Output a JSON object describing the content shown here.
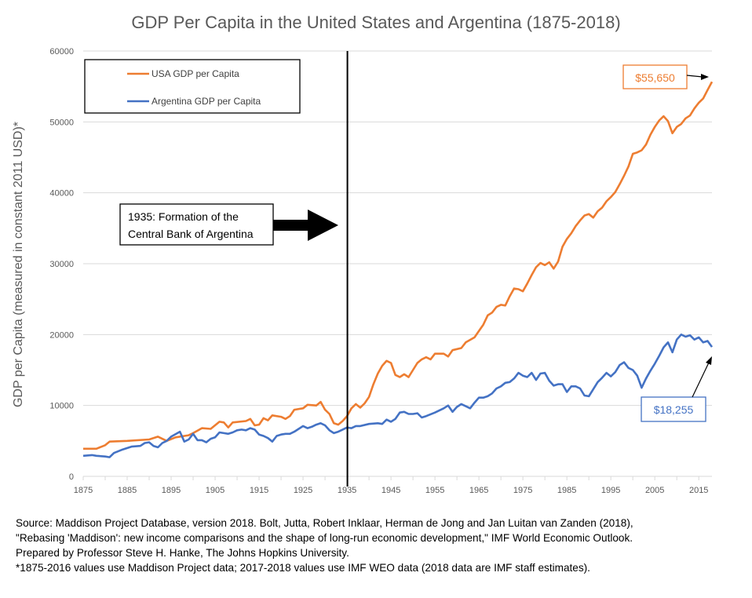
{
  "chart_data": {
    "type": "line",
    "title": "GDP Per Capita in the United States and Argentina (1875-2018)",
    "xlabel": "",
    "ylabel": "GDP per Capita (measured in constant 2011 USD)*",
    "xlim": [
      1875,
      2018
    ],
    "ylim": [
      0,
      60000
    ],
    "x_ticks": [
      "1875",
      "1885",
      "1895",
      "1905",
      "1915",
      "1925",
      "1935",
      "1945",
      "1955",
      "1965",
      "1975",
      "1985",
      "1995",
      "2005",
      "2015"
    ],
    "y_ticks": [
      "0",
      "10000",
      "20000",
      "30000",
      "40000",
      "50000",
      "60000"
    ],
    "grid": "horizontal",
    "legend_placement": "top-left",
    "colors": {
      "usa": "#ED7D31",
      "argentina": "#4472C4"
    },
    "series": [
      {
        "name": "USA GDP per Capita",
        "points": [
          [
            1875,
            3900
          ],
          [
            1878,
            3900
          ],
          [
            1880,
            4400
          ],
          [
            1881,
            4900
          ],
          [
            1885,
            5000
          ],
          [
            1890,
            5200
          ],
          [
            1892,
            5600
          ],
          [
            1894,
            5000
          ],
          [
            1896,
            5500
          ],
          [
            1899,
            5800
          ],
          [
            1900,
            6100
          ],
          [
            1902,
            6800
          ],
          [
            1904,
            6700
          ],
          [
            1906,
            7700
          ],
          [
            1907,
            7600
          ],
          [
            1908,
            6900
          ],
          [
            1909,
            7600
          ],
          [
            1912,
            7800
          ],
          [
            1913,
            8100
          ],
          [
            1914,
            7200
          ],
          [
            1915,
            7300
          ],
          [
            1916,
            8200
          ],
          [
            1917,
            7900
          ],
          [
            1918,
            8600
          ],
          [
            1920,
            8400
          ],
          [
            1921,
            8100
          ],
          [
            1922,
            8500
          ],
          [
            1923,
            9400
          ],
          [
            1925,
            9600
          ],
          [
            1926,
            10100
          ],
          [
            1928,
            10000
          ],
          [
            1929,
            10500
          ],
          [
            1930,
            9400
          ],
          [
            1931,
            8800
          ],
          [
            1932,
            7500
          ],
          [
            1933,
            7300
          ],
          [
            1934,
            7800
          ],
          [
            1935,
            8500
          ],
          [
            1936,
            9600
          ],
          [
            1937,
            10200
          ],
          [
            1938,
            9700
          ],
          [
            1939,
            10300
          ],
          [
            1940,
            11200
          ],
          [
            1941,
            13000
          ],
          [
            1942,
            14500
          ],
          [
            1943,
            15600
          ],
          [
            1944,
            16300
          ],
          [
            1945,
            16000
          ],
          [
            1946,
            14300
          ],
          [
            1947,
            14000
          ],
          [
            1948,
            14400
          ],
          [
            1949,
            14000
          ],
          [
            1950,
            15000
          ],
          [
            1951,
            16000
          ],
          [
            1952,
            16500
          ],
          [
            1953,
            16800
          ],
          [
            1954,
            16500
          ],
          [
            1955,
            17300
          ],
          [
            1957,
            17300
          ],
          [
            1958,
            16900
          ],
          [
            1959,
            17800
          ],
          [
            1961,
            18100
          ],
          [
            1962,
            18900
          ],
          [
            1964,
            19600
          ],
          [
            1965,
            20500
          ],
          [
            1966,
            21400
          ],
          [
            1967,
            22700
          ],
          [
            1968,
            23100
          ],
          [
            1969,
            23900
          ],
          [
            1970,
            24200
          ],
          [
            1971,
            24100
          ],
          [
            1972,
            25400
          ],
          [
            1973,
            26500
          ],
          [
            1974,
            26400
          ],
          [
            1975,
            26100
          ],
          [
            1976,
            27200
          ],
          [
            1977,
            28400
          ],
          [
            1978,
            29500
          ],
          [
            1979,
            30100
          ],
          [
            1980,
            29800
          ],
          [
            1981,
            30200
          ],
          [
            1982,
            29300
          ],
          [
            1983,
            30300
          ],
          [
            1984,
            32400
          ],
          [
            1985,
            33500
          ],
          [
            1986,
            34300
          ],
          [
            1987,
            35300
          ],
          [
            1988,
            36100
          ],
          [
            1989,
            36800
          ],
          [
            1990,
            37000
          ],
          [
            1991,
            36500
          ],
          [
            1992,
            37400
          ],
          [
            1993,
            37900
          ],
          [
            1994,
            38800
          ],
          [
            1995,
            39400
          ],
          [
            1996,
            40100
          ],
          [
            1997,
            41200
          ],
          [
            1998,
            42400
          ],
          [
            1999,
            43700
          ],
          [
            2000,
            45500
          ],
          [
            2001,
            45700
          ],
          [
            2002,
            46000
          ],
          [
            2003,
            46800
          ],
          [
            2004,
            48200
          ],
          [
            2005,
            49300
          ],
          [
            2006,
            50200
          ],
          [
            2007,
            50800
          ],
          [
            2008,
            50100
          ],
          [
            2009,
            48400
          ],
          [
            2010,
            49300
          ],
          [
            2011,
            49700
          ],
          [
            2012,
            50500
          ],
          [
            2013,
            50900
          ],
          [
            2014,
            51900
          ],
          [
            2015,
            52700
          ],
          [
            2016,
            53300
          ],
          [
            2017,
            54500
          ],
          [
            2018,
            55650
          ]
        ]
      },
      {
        "name": "Argentina GDP per Capita",
        "points": [
          [
            1875,
            2900
          ],
          [
            1877,
            3000
          ],
          [
            1878,
            2900
          ],
          [
            1880,
            2800
          ],
          [
            1881,
            2700
          ],
          [
            1882,
            3300
          ],
          [
            1884,
            3800
          ],
          [
            1886,
            4200
          ],
          [
            1888,
            4300
          ],
          [
            1889,
            4700
          ],
          [
            1890,
            4800
          ],
          [
            1891,
            4300
          ],
          [
            1892,
            4100
          ],
          [
            1893,
            4700
          ],
          [
            1894,
            5000
          ],
          [
            1895,
            5600
          ],
          [
            1897,
            6300
          ],
          [
            1898,
            4900
          ],
          [
            1899,
            5200
          ],
          [
            1900,
            6000
          ],
          [
            1901,
            5100
          ],
          [
            1902,
            5100
          ],
          [
            1903,
            4800
          ],
          [
            1904,
            5300
          ],
          [
            1905,
            5500
          ],
          [
            1906,
            6200
          ],
          [
            1907,
            6100
          ],
          [
            1908,
            6000
          ],
          [
            1909,
            6200
          ],
          [
            1910,
            6500
          ],
          [
            1911,
            6600
          ],
          [
            1912,
            6500
          ],
          [
            1913,
            6800
          ],
          [
            1914,
            6600
          ],
          [
            1915,
            5900
          ],
          [
            1916,
            5700
          ],
          [
            1917,
            5400
          ],
          [
            1918,
            4900
          ],
          [
            1919,
            5700
          ],
          [
            1920,
            5900
          ],
          [
            1921,
            6000
          ],
          [
            1922,
            6000
          ],
          [
            1923,
            6300
          ],
          [
            1924,
            6700
          ],
          [
            1925,
            7100
          ],
          [
            1926,
            6800
          ],
          [
            1927,
            7000
          ],
          [
            1928,
            7300
          ],
          [
            1929,
            7500
          ],
          [
            1930,
            7200
          ],
          [
            1931,
            6500
          ],
          [
            1932,
            6100
          ],
          [
            1933,
            6300
          ],
          [
            1934,
            6600
          ],
          [
            1935,
            6900
          ],
          [
            1936,
            6800
          ],
          [
            1937,
            7100
          ],
          [
            1938,
            7100
          ],
          [
            1940,
            7400
          ],
          [
            1942,
            7500
          ],
          [
            1943,
            7400
          ],
          [
            1944,
            8000
          ],
          [
            1945,
            7700
          ],
          [
            1946,
            8100
          ],
          [
            1947,
            9000
          ],
          [
            1948,
            9100
          ],
          [
            1949,
            8800
          ],
          [
            1950,
            8800
          ],
          [
            1951,
            8900
          ],
          [
            1952,
            8300
          ],
          [
            1953,
            8500
          ],
          [
            1955,
            9000
          ],
          [
            1957,
            9600
          ],
          [
            1958,
            10000
          ],
          [
            1959,
            9100
          ],
          [
            1960,
            9800
          ],
          [
            1961,
            10200
          ],
          [
            1962,
            9900
          ],
          [
            1963,
            9600
          ],
          [
            1964,
            10400
          ],
          [
            1965,
            11100
          ],
          [
            1966,
            11100
          ],
          [
            1967,
            11300
          ],
          [
            1968,
            11700
          ],
          [
            1969,
            12400
          ],
          [
            1970,
            12700
          ],
          [
            1971,
            13200
          ],
          [
            1972,
            13300
          ],
          [
            1973,
            13800
          ],
          [
            1974,
            14600
          ],
          [
            1975,
            14200
          ],
          [
            1976,
            14000
          ],
          [
            1977,
            14600
          ],
          [
            1978,
            13600
          ],
          [
            1979,
            14500
          ],
          [
            1980,
            14600
          ],
          [
            1981,
            13500
          ],
          [
            1982,
            12800
          ],
          [
            1983,
            13000
          ],
          [
            1984,
            13000
          ],
          [
            1985,
            11900
          ],
          [
            1986,
            12700
          ],
          [
            1987,
            12700
          ],
          [
            1988,
            12400
          ],
          [
            1989,
            11400
          ],
          [
            1990,
            11300
          ],
          [
            1991,
            12300
          ],
          [
            1992,
            13300
          ],
          [
            1993,
            13900
          ],
          [
            1994,
            14600
          ],
          [
            1995,
            14100
          ],
          [
            1996,
            14700
          ],
          [
            1997,
            15700
          ],
          [
            1998,
            16100
          ],
          [
            1999,
            15300
          ],
          [
            2000,
            15000
          ],
          [
            2001,
            14200
          ],
          [
            2002,
            12500
          ],
          [
            2003,
            13800
          ],
          [
            2004,
            14900
          ],
          [
            2005,
            15900
          ],
          [
            2006,
            17000
          ],
          [
            2007,
            18200
          ],
          [
            2008,
            18900
          ],
          [
            2009,
            17500
          ],
          [
            2010,
            19300
          ],
          [
            2011,
            20000
          ],
          [
            2012,
            19700
          ],
          [
            2013,
            19900
          ],
          [
            2014,
            19300
          ],
          [
            2015,
            19600
          ],
          [
            2016,
            18900
          ],
          [
            2017,
            19100
          ],
          [
            2018,
            18255
          ]
        ]
      }
    ],
    "annotations": {
      "event_year": 1935,
      "event_text_line1": "1935: Formation of the",
      "event_text_line2": "Central Bank of Argentina",
      "usa_end_label": "$55,650",
      "argentina_end_label": "$18,255"
    }
  },
  "footnote": {
    "line1": "Source: Maddison Project Database, version 2018. Bolt, Jutta, Robert Inklaar, Herman de Jong and Jan Luitan van Zanden (2018),",
    "line2": "\"Rebasing 'Maddison': new income comparisons and the shape of long-run economic development,\" IMF World Economic Outlook.",
    "line3": "Prepared by Professor Steve H. Hanke, The Johns Hopkins University.",
    "line4": "*1875-2016 values use Maddison Project data; 2017-2018 values use IMF WEO data (2018 data are IMF staff estimates)."
  }
}
